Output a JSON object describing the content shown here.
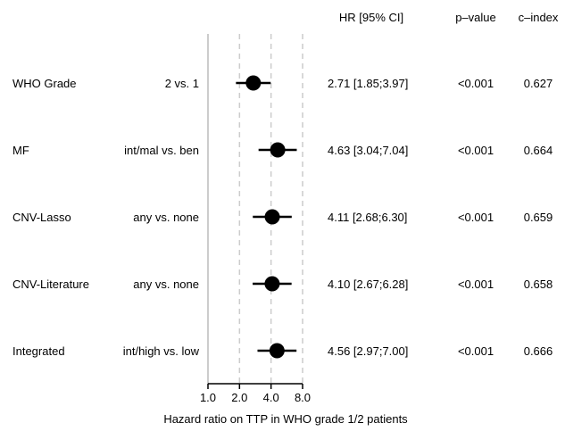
{
  "chart_data": {
    "type": "forest",
    "xscale": "log2",
    "xlabel": "Hazard ratio on TTP in WHO grade 1/2 patients",
    "xticks": [
      1,
      2,
      4,
      8
    ],
    "xtick_labels": [
      "1.0",
      "2.0",
      "4.0",
      "8.0"
    ],
    "xlim": [
      1,
      8
    ],
    "reference_line": 1,
    "dashed_gridlines": [
      2,
      4,
      8
    ],
    "column_headers": {
      "hr": "HR [95% CI]",
      "pvalue": "p–value",
      "cindex": "c–index"
    },
    "rows": [
      {
        "variable": "WHO Grade",
        "comparison": "2 vs.  1",
        "hr": 2.71,
        "lower": 1.85,
        "upper": 3.97,
        "hr_text": "2.71 [1.85;3.97]",
        "pvalue": "<0.001",
        "cindex": "0.627"
      },
      {
        "variable": "MF",
        "comparison": "int/mal vs.  ben",
        "hr": 4.63,
        "lower": 3.04,
        "upper": 7.04,
        "hr_text": "4.63 [3.04;7.04]",
        "pvalue": "<0.001",
        "cindex": "0.664"
      },
      {
        "variable": "CNV-Lasso",
        "comparison": "any vs.  none",
        "hr": 4.11,
        "lower": 2.68,
        "upper": 6.3,
        "hr_text": "4.11 [2.68;6.30]",
        "pvalue": "<0.001",
        "cindex": "0.659"
      },
      {
        "variable": "CNV-Literature",
        "comparison": "any vs.  none",
        "hr": 4.1,
        "lower": 2.67,
        "upper": 6.28,
        "hr_text": "4.10 [2.67;6.28]",
        "pvalue": "<0.001",
        "cindex": "0.658"
      },
      {
        "variable": "Integrated",
        "comparison": "int/high vs.  low",
        "hr": 4.56,
        "lower": 2.97,
        "upper": 7.0,
        "hr_text": "4.56 [2.97;7.00]",
        "pvalue": "<0.001",
        "cindex": "0.666"
      }
    ],
    "colors": {
      "point": "#000000",
      "reference": "#cccccc",
      "gridline": "#cccccc"
    }
  }
}
